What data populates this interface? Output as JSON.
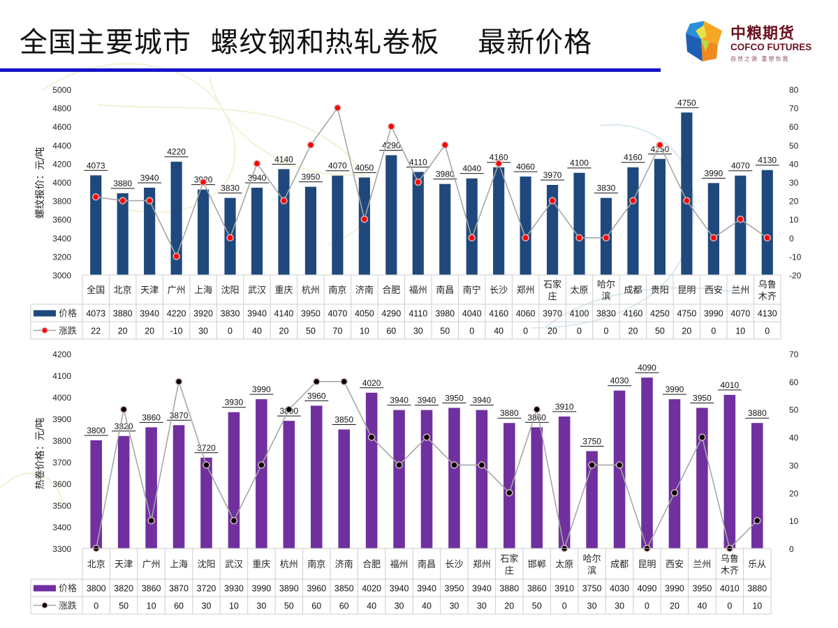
{
  "page": {
    "title": "全国主要城市  螺纹钢和热轧卷板    最新价格"
  },
  "logo": {
    "name_cn": "中粮期货",
    "name_en": "COFCO FUTURES",
    "slogan": "自然之源 重塑你我"
  },
  "colors": {
    "title_rule": "#1414c8",
    "rebar_bar": "#1f497d",
    "hrc_bar": "#7030a0",
    "line": "#a6a6a6",
    "rebar_marker": "#ff0000",
    "hrc_marker": "#000000"
  },
  "chart_data": [
    {
      "type": "bar",
      "combo": "bar+line (secondary axis)",
      "name": "rebar",
      "title": "",
      "ylabel": "螺纹报价：元/吨",
      "y2label": "",
      "ylim": [
        3000,
        5000
      ],
      "y_ticks": [
        3000,
        3200,
        3400,
        3600,
        3800,
        4000,
        4200,
        4400,
        4600,
        4800,
        5000
      ],
      "y2lim": [
        -20,
        80
      ],
      "y2_ticks": [
        -20,
        -10,
        0,
        10,
        20,
        30,
        40,
        50,
        60,
        70,
        80
      ],
      "grid": false,
      "legend": "data-table-left",
      "categories": [
        "全国",
        "北京",
        "天津",
        "广州",
        "上海",
        "沈阳",
        "武汉",
        "重庆",
        "杭州",
        "南京",
        "济南",
        "合肥",
        "福州",
        "南昌",
        "南宁",
        "长沙",
        "郑州",
        "石家庄",
        "太原",
        "哈尔滨",
        "成都",
        "贵阳",
        "昆明",
        "西安",
        "兰州",
        "乌鲁木齐"
      ],
      "series": [
        {
          "name": "价格",
          "kind": "bar",
          "axis": "primary",
          "values": [
            4073,
            3880,
            3940,
            4220,
            3920,
            3830,
            3940,
            4140,
            3950,
            4070,
            4050,
            4290,
            4110,
            3980,
            4040,
            4160,
            4060,
            3970,
            4100,
            3830,
            4160,
            4250,
            4750,
            3990,
            4070,
            4130
          ]
        },
        {
          "name": "涨跌",
          "kind": "line",
          "axis": "secondary",
          "values": [
            22,
            20,
            20,
            -10,
            30,
            0,
            40,
            20,
            50,
            70,
            10,
            60,
            30,
            50,
            0,
            40,
            0,
            20,
            0,
            0,
            20,
            50,
            20,
            0,
            10,
            0
          ]
        }
      ]
    },
    {
      "type": "bar",
      "combo": "bar+line (secondary axis)",
      "name": "hot-rolled-coil",
      "title": "",
      "ylabel": "热卷价格：元/吨",
      "y2label": "",
      "ylim": [
        3300,
        4200
      ],
      "y_ticks": [
        3300,
        3400,
        3500,
        3600,
        3700,
        3800,
        3900,
        4000,
        4100,
        4200
      ],
      "y2lim": [
        0,
        70
      ],
      "y2_ticks": [
        0,
        10,
        20,
        30,
        40,
        50,
        60,
        70
      ],
      "grid": false,
      "legend": "data-table-left",
      "categories": [
        "北京",
        "天津",
        "广州",
        "上海",
        "沈阳",
        "武汉",
        "重庆",
        "杭州",
        "南京",
        "济南",
        "合肥",
        "福州",
        "南昌",
        "长沙",
        "郑州",
        "石家庄",
        "邯郸",
        "太原",
        "哈尔滨",
        "成都",
        "昆明",
        "西安",
        "兰州",
        "乌鲁木齐",
        "乐从"
      ],
      "series": [
        {
          "name": "价格",
          "kind": "bar",
          "axis": "primary",
          "values": [
            3800,
            3820,
            3860,
            3870,
            3720,
            3930,
            3990,
            3890,
            3960,
            3850,
            4020,
            3940,
            3940,
            3950,
            3940,
            3880,
            3860,
            3910,
            3750,
            4030,
            4090,
            3990,
            3950,
            4010,
            3880
          ]
        },
        {
          "name": "涨跌",
          "kind": "line",
          "axis": "secondary",
          "values": [
            0,
            50,
            10,
            60,
            30,
            10,
            30,
            50,
            60,
            60,
            40,
            30,
            40,
            30,
            30,
            20,
            50,
            0,
            30,
            30,
            0,
            20,
            40,
            0,
            10
          ]
        }
      ]
    }
  ]
}
